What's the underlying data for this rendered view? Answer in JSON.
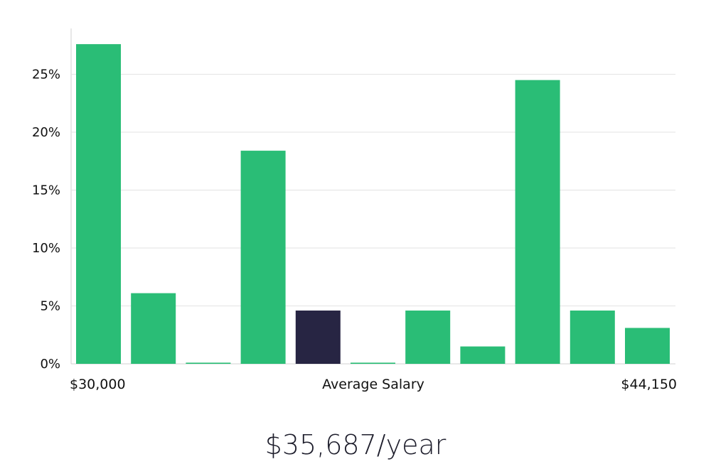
{
  "chart_data": {
    "type": "bar",
    "ylim": [
      0,
      28
    ],
    "yticks": [
      0,
      5,
      10,
      15,
      20,
      25
    ],
    "ytick_suffix": "%",
    "x_start_label": "$30,000",
    "x_center_label": "Average Salary",
    "x_end_label": "$44,150",
    "values": [
      27.6,
      6.1,
      0.1,
      18.4,
      4.6,
      0.1,
      4.6,
      1.5,
      24.5,
      4.6,
      3.1
    ],
    "highlight_index": 4,
    "colors": {
      "bar": "#2abd76",
      "highlight": "#272543",
      "grid": "#e3e3e3",
      "axis": "#d0d0d0"
    }
  },
  "salary_text": "$35,687/year"
}
